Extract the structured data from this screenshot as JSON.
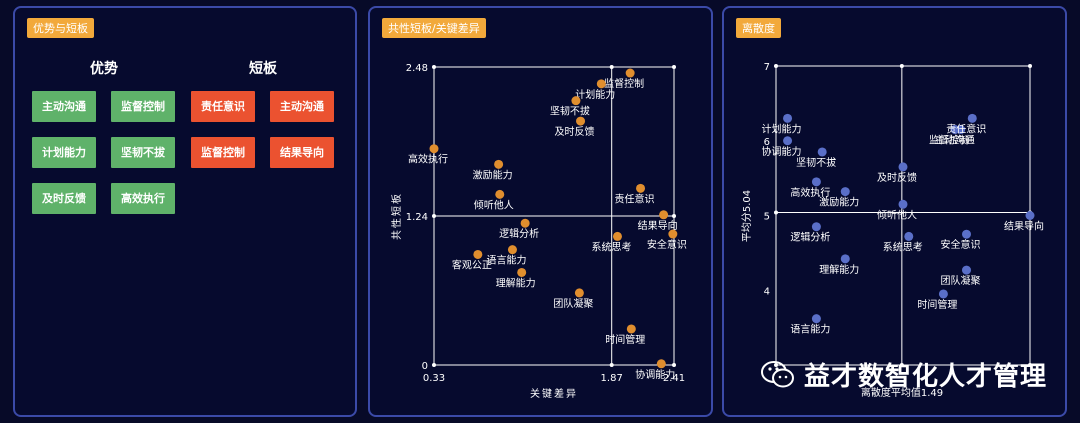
{
  "panel_left": {
    "tag": "优势与短板",
    "strengths_title": "优势",
    "weaknesses_title": "短板",
    "strengths": [
      "主动沟通",
      "监督控制",
      "计划能力",
      "坚韧不拔",
      "及时反馈",
      "高效执行"
    ],
    "weaknesses": [
      "责任意识",
      "主动沟通",
      "监督控制",
      "结果导向"
    ]
  },
  "panel_mid": {
    "tag": "共性短板/关键差异"
  },
  "panel_right": {
    "tag": "离散度"
  },
  "watermark": {
    "text": "益才数智化人才管理",
    "icon": "wechat-icon"
  },
  "colors": {
    "strength_chip": "#5fb26a",
    "weakness_chip": "#eb5230",
    "tag": "#f2a93b",
    "dot_mid": "#e08e2e",
    "dot_right": "#5a6fc8"
  },
  "chart_data": [
    {
      "type": "scatter",
      "title": "共性短板/关键差异",
      "xlabel": "关键差异",
      "ylabel": "共性短板",
      "xlim": [
        0.33,
        2.41
      ],
      "ylim": [
        0,
        2.48
      ],
      "x_ticks": [
        "0.33",
        "1.87",
        "2.41"
      ],
      "y_ticks": [
        "0",
        "1.24",
        "2.48"
      ],
      "x_divider": 1.87,
      "y_divider": 1.24,
      "points": [
        {
          "label": "监督控制",
          "x": 2.03,
          "y": 2.43
        },
        {
          "label": "计划能力",
          "x": 1.78,
          "y": 2.34
        },
        {
          "label": "坚韧不拔",
          "x": 1.56,
          "y": 2.2
        },
        {
          "label": "及时反馈",
          "x": 1.6,
          "y": 2.03
        },
        {
          "label": "高效执行",
          "x": 0.33,
          "y": 1.8
        },
        {
          "label": "激励能力",
          "x": 0.89,
          "y": 1.67
        },
        {
          "label": "倾听他人",
          "x": 0.9,
          "y": 1.42
        },
        {
          "label": "责任意识",
          "x": 2.12,
          "y": 1.47
        },
        {
          "label": "结果导向",
          "x": 2.32,
          "y": 1.25
        },
        {
          "label": "逻辑分析",
          "x": 1.12,
          "y": 1.18
        },
        {
          "label": "系统思考",
          "x": 1.92,
          "y": 1.07
        },
        {
          "label": "安全意识",
          "x": 2.4,
          "y": 1.09
        },
        {
          "label": "语言能力",
          "x": 1.01,
          "y": 0.96
        },
        {
          "label": "客观公正",
          "x": 0.71,
          "y": 0.92
        },
        {
          "label": "理解能力",
          "x": 1.09,
          "y": 0.77
        },
        {
          "label": "团队凝聚",
          "x": 1.59,
          "y": 0.6
        },
        {
          "label": "时间管理",
          "x": 2.04,
          "y": 0.3
        },
        {
          "label": "协调能力",
          "x": 2.3,
          "y": 0.01
        }
      ]
    },
    {
      "type": "scatter",
      "title": "离散度",
      "xlabel": "离散度平均值1.49",
      "ylabel": "平均分5.04",
      "xlim": [
        0.4,
        2.6
      ],
      "ylim": [
        3,
        7
      ],
      "y_ticks": [
        "4",
        "5",
        "6",
        "7"
      ],
      "x_divider": 1.49,
      "y_divider": 5.04,
      "points": [
        {
          "label": "计划能力",
          "x": 0.5,
          "y": 6.3
        },
        {
          "label": "协调能力",
          "x": 0.5,
          "y": 6.0
        },
        {
          "label": "坚韧不拔",
          "x": 0.8,
          "y": 5.85
        },
        {
          "label": "监督控制",
          "x": 1.95,
          "y": 6.15
        },
        {
          "label": "主动沟通",
          "x": 2.0,
          "y": 6.15
        },
        {
          "label": "责任意识",
          "x": 2.1,
          "y": 6.3
        },
        {
          "label": "及时反馈",
          "x": 1.5,
          "y": 5.65
        },
        {
          "label": "高效执行",
          "x": 0.75,
          "y": 5.45
        },
        {
          "label": "激励能力",
          "x": 1.0,
          "y": 5.32
        },
        {
          "label": "倾听他人",
          "x": 1.5,
          "y": 5.15
        },
        {
          "label": "逻辑分析",
          "x": 0.75,
          "y": 4.85
        },
        {
          "label": "系统思考",
          "x": 1.55,
          "y": 4.72
        },
        {
          "label": "安全意识",
          "x": 2.05,
          "y": 4.75
        },
        {
          "label": "结果导向",
          "x": 2.6,
          "y": 5.0
        },
        {
          "label": "理解能力",
          "x": 1.0,
          "y": 4.42
        },
        {
          "label": "团队凝聚",
          "x": 2.05,
          "y": 4.27
        },
        {
          "label": "时间管理",
          "x": 1.85,
          "y": 3.95
        },
        {
          "label": "语言能力",
          "x": 0.75,
          "y": 3.62
        }
      ]
    }
  ]
}
